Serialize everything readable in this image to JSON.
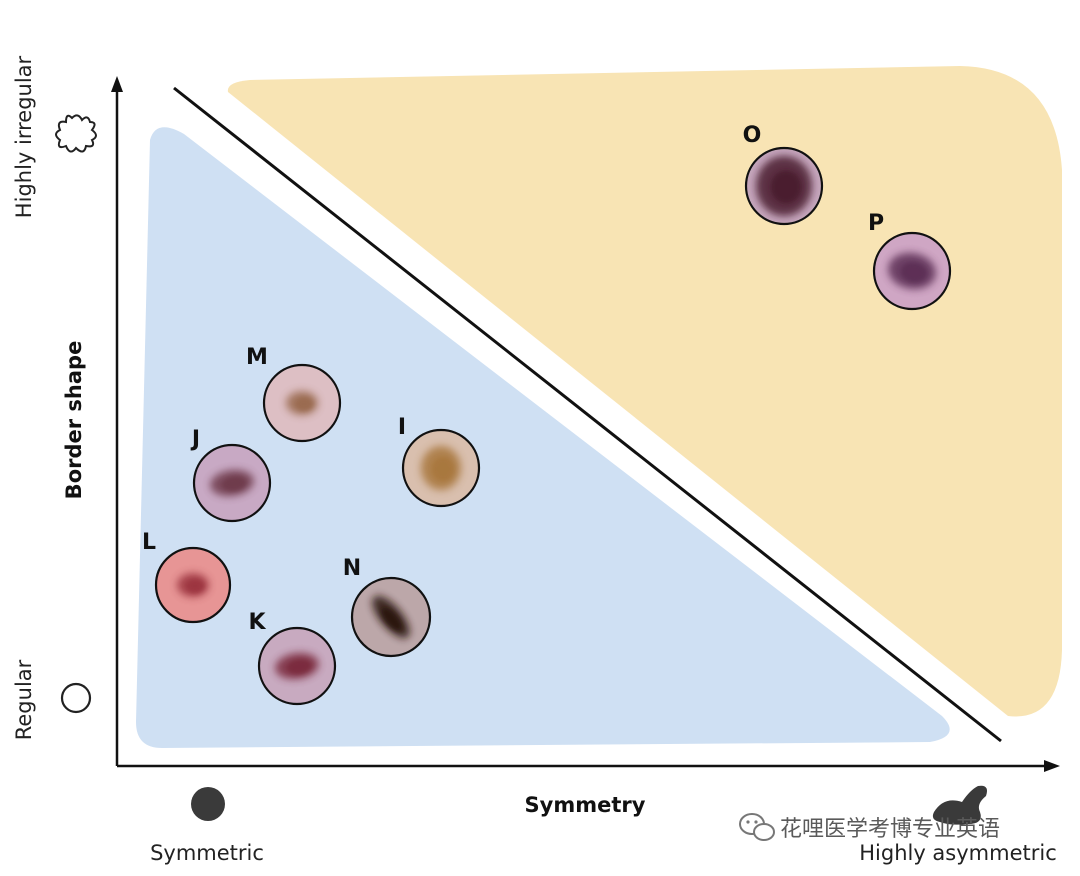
{
  "axes": {
    "x_title": "Symmetry",
    "y_title": "Border shape",
    "x_low": "Symmetric",
    "x_high": "Highly asymmetric",
    "y_low": "Regular",
    "y_high": "Highly irregular"
  },
  "regions": {
    "left": {
      "color": "#cfe0f3"
    },
    "right": {
      "color": "#f8e4b4"
    }
  },
  "lesions": [
    {
      "label": "O",
      "bg": "#c6a7bd",
      "core": "#4a1a2e"
    },
    {
      "label": "P",
      "bg": "#cfa6c4",
      "core": "#5b2e55"
    },
    {
      "label": "M",
      "bg": "#ddbfc4",
      "core": "#9a6a4f"
    },
    {
      "label": "I",
      "bg": "#d9bfae",
      "core": "#a8773e"
    },
    {
      "label": "J",
      "bg": "#c8a9c4",
      "core": "#6e3a4c"
    },
    {
      "label": "L",
      "bg": "#e79595",
      "core": "#9c3540"
    },
    {
      "label": "N",
      "bg": "#bca7a9",
      "core": "#2a1410"
    },
    {
      "label": "K",
      "bg": "#c8aac0",
      "core": "#7a2c3c"
    }
  ],
  "icons": {
    "irregular": "irregular-blob-icon",
    "regular": "circle-outline-icon",
    "symmetric": "filled-circle-icon",
    "asymmetric": "asymmetric-blob-icon"
  },
  "watermark": {
    "text": "花哩医学考博专业英语",
    "icon": "wechat-icon"
  }
}
